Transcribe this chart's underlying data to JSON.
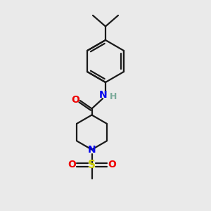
{
  "background_color": "#eaeaea",
  "bond_color": "#1a1a1a",
  "nitrogen_color": "#0000ee",
  "oxygen_color": "#ee0000",
  "sulfur_color": "#cccc00",
  "hydrogen_color": "#7aaa9a",
  "line_width": 1.6,
  "figsize": [
    3.0,
    3.0
  ],
  "dpi": 100,
  "xlim": [
    0,
    10
  ],
  "ylim": [
    0,
    10
  ]
}
